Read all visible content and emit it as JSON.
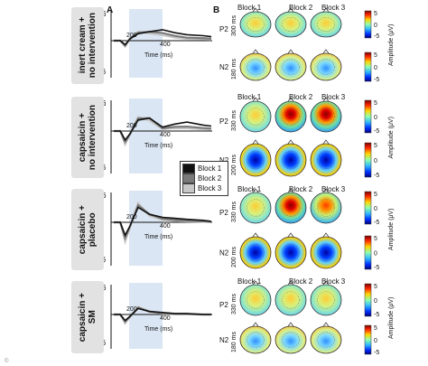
{
  "panels": {
    "a": "A",
    "b": "B"
  },
  "conditions": [
    {
      "label": "inert cream +\nno intervention",
      "p2_latency": "300 ms",
      "n2_latency": "180 ms"
    },
    {
      "label": "capsaicin +\nno intervention",
      "p2_latency": "330 ms",
      "n2_latency": "200 ms"
    },
    {
      "label": "capsaicin +\nplacebo",
      "p2_latency": "330 ms",
      "n2_latency": "200 ms"
    },
    {
      "label": "capsaicin +\nSM",
      "p2_latency": "330 ms",
      "n2_latency": "180 ms"
    }
  ],
  "erp_axes": {
    "y_ticks": [
      "6",
      "-6"
    ],
    "x_tick_marker": "200",
    "x_tick_end": "400",
    "xlabel": "Time (ms)",
    "ylabel": "Amplitude (μV)"
  },
  "components": {
    "p2": "P2",
    "n2": "N2"
  },
  "blocks": [
    "Block 1",
    "Block 2",
    "Block 3"
  ],
  "legend": {
    "items": [
      {
        "label": "Block 1",
        "color": "#111111"
      },
      {
        "label": "Block 2",
        "color": "#7a7a7a"
      },
      {
        "label": "Block 3",
        "color": "#c8c8c8"
      }
    ]
  },
  "colorbar": {
    "ticks": [
      "5",
      "0",
      "-5"
    ],
    "label": "Amplitude (μV)"
  },
  "copyright": "©"
}
